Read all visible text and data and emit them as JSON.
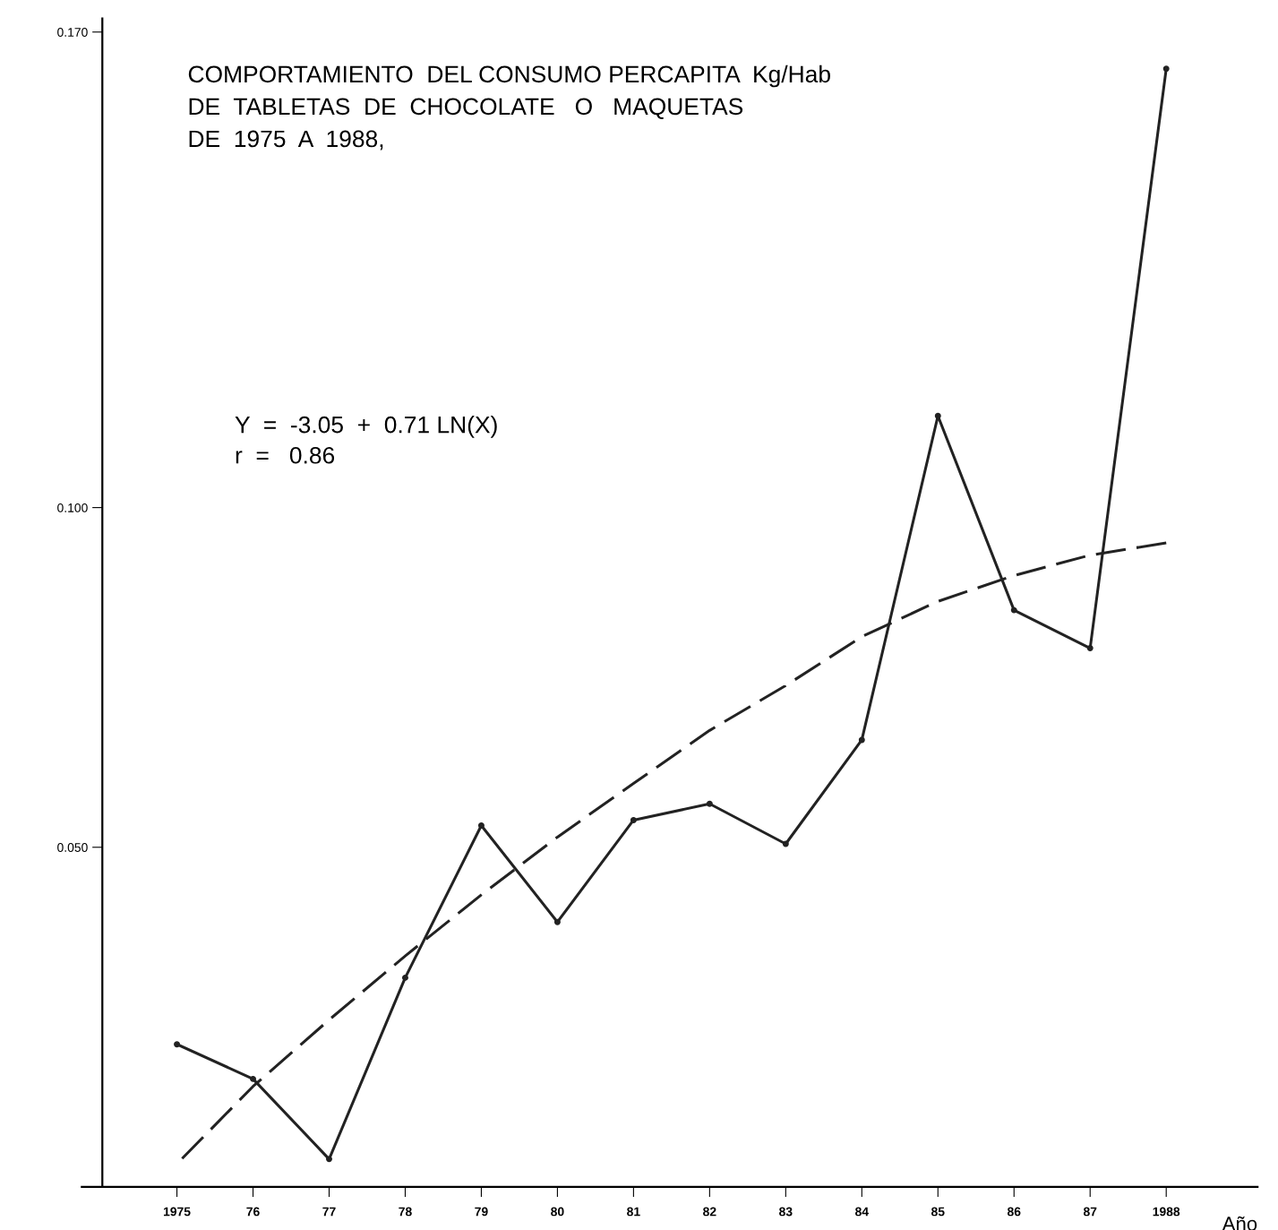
{
  "chart_data": {
    "type": "line",
    "title": "COMPORTAMIENTO  DEL CONSUMO PERCAPITA  Kg/Hab\nDE  TABLETAS  DE  CHOCOLATE   O   MAQUETAS\nDE  1975  A  1988,",
    "xlabel": "Año",
    "categories": [
      "1975",
      "76",
      "77",
      "78",
      "79",
      "80",
      "81",
      "82",
      "83",
      "84",
      "85",
      "86",
      "87",
      "1988"
    ],
    "series": [
      {
        "color": "#222222",
        "marker": "circle",
        "line_style": "solid",
        "values": [
          0.021,
          0.0159,
          0.0041,
          0.0308,
          0.0532,
          0.039,
          0.054,
          0.0564,
          0.0505,
          0.0658,
          0.1135,
          0.0849,
          0.0793,
          0.1646
        ]
      },
      {
        "color": "#222222",
        "marker": "none",
        "line_style": "dashed",
        "values": [
          0.0034,
          0.0148,
          0.0246,
          0.034,
          0.043,
          0.0515,
          0.0594,
          0.0672,
          0.0738,
          0.081,
          0.0862,
          0.09,
          0.093,
          0.0948
        ]
      }
    ],
    "ylim": [
      0,
      0.172
    ],
    "yticks": [
      {
        "value": 0.05,
        "label": "0.050"
      },
      {
        "value": 0.1,
        "label": "0.100"
      },
      {
        "value": 0.17,
        "label": "0.170"
      }
    ],
    "annotations": [
      "Y  =  -3.05  +  0.71 LN(X)\nr  =   0.86"
    ],
    "grid": false,
    "legend": false
  }
}
